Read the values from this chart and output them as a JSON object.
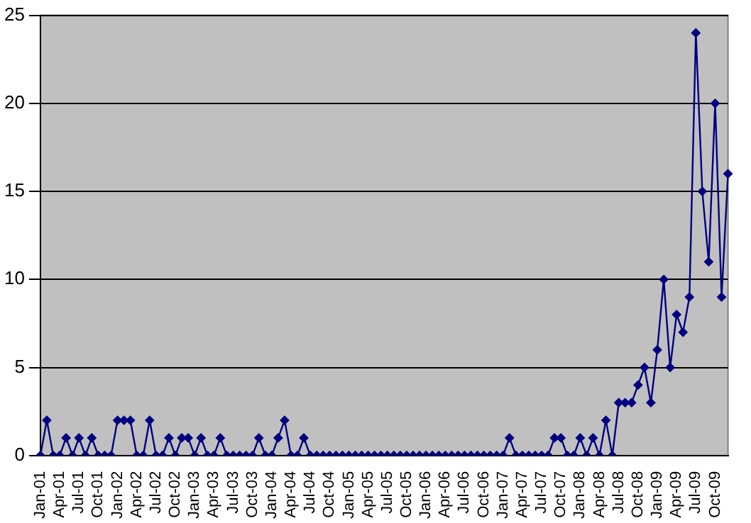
{
  "chart_data": {
    "type": "line",
    "categories": [
      "Jan-01",
      null,
      null,
      "Apr-01",
      null,
      null,
      "Jul-01",
      null,
      null,
      "Oct-01",
      null,
      null,
      "Jan-02",
      null,
      null,
      "Apr-02",
      null,
      null,
      "Jul-02",
      null,
      null,
      "Oct-02",
      null,
      null,
      "Jan-03",
      null,
      null,
      "Apr-03",
      null,
      null,
      "Jul-03",
      null,
      null,
      "Oct-03",
      null,
      null,
      "Jan-04",
      null,
      null,
      "Apr-04",
      null,
      null,
      "Jul-04",
      null,
      null,
      "Oct-04",
      null,
      null,
      "Jan-05",
      null,
      null,
      "Apr-05",
      null,
      null,
      "Jul-05",
      null,
      null,
      "Oct-05",
      null,
      null,
      "Jan-06",
      null,
      null,
      "Apr-06",
      null,
      null,
      "Jul-06",
      null,
      null,
      "Oct-06",
      null,
      null,
      "Jan-07",
      null,
      null,
      "Apr-07",
      null,
      null,
      "Jul-07",
      null,
      null,
      "Oct-07",
      null,
      null,
      "Jan-08",
      null,
      null,
      "Apr-08",
      null,
      null,
      "Jul-08",
      null,
      null,
      "Oct-08",
      null,
      null,
      "Jan-09",
      null,
      null,
      "Apr-09",
      null,
      null,
      "Jul-09",
      null,
      null,
      "Oct-09",
      null,
      null
    ],
    "series": [
      {
        "color": "#000080",
        "values": [
          0,
          2,
          0,
          0,
          1,
          0,
          1,
          0,
          1,
          0,
          0,
          0,
          2,
          2,
          2,
          0,
          0,
          2,
          0,
          0,
          1,
          0,
          1,
          1,
          0,
          1,
          0,
          0,
          1,
          0,
          0,
          0,
          0,
          0,
          1,
          0,
          0,
          1,
          2,
          0,
          0,
          1,
          0,
          0,
          0,
          0,
          0,
          0,
          0,
          0,
          0,
          0,
          0,
          0,
          0,
          0,
          0,
          0,
          0,
          0,
          0,
          0,
          0,
          0,
          0,
          0,
          0,
          0,
          0,
          0,
          0,
          0,
          0,
          1,
          0,
          0,
          0,
          0,
          0,
          0,
          1,
          1,
          0,
          0,
          1,
          0,
          1,
          0,
          2,
          0,
          3,
          3,
          3,
          4,
          5,
          3,
          6,
          10,
          5,
          8,
          7,
          9,
          24,
          15,
          11,
          20,
          9,
          16
        ]
      }
    ],
    "ylim": [
      0,
      25
    ],
    "yticks": [
      0,
      5,
      10,
      15,
      20,
      25
    ],
    "grid": "y",
    "legend": false,
    "marker": "diamond",
    "line_style": "solid"
  }
}
